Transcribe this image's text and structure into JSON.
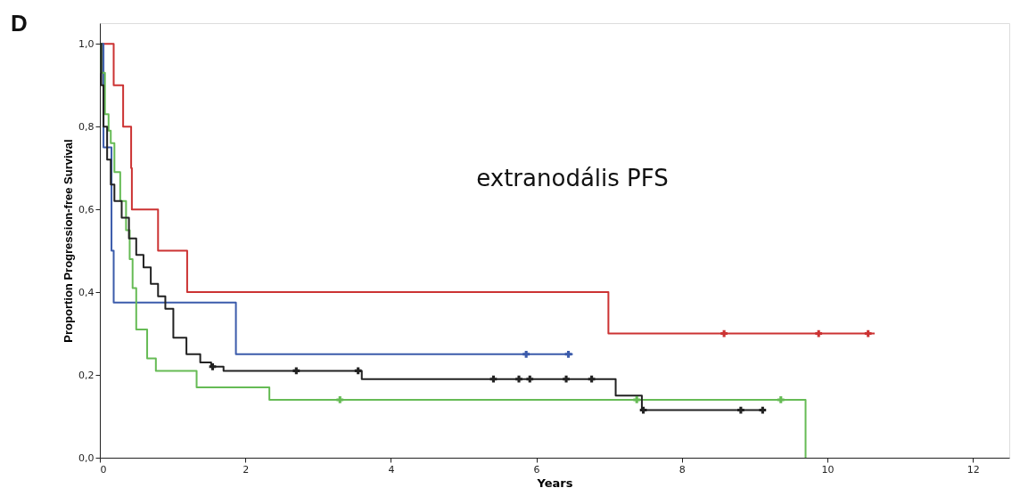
{
  "chart_data": {
    "type": "step",
    "xlabel": "Years",
    "ylabel": "Proportion Progression-free Survival",
    "xlim": [
      0,
      12.5
    ],
    "ylim": [
      0,
      1.05
    ],
    "xticks": [
      0,
      2,
      4,
      6,
      8,
      10,
      12
    ],
    "yticks": [
      {
        "value": 0,
        "label": "0,0"
      },
      {
        "value": 0.2,
        "label": "0,2"
      },
      {
        "value": 0.4,
        "label": "0,4"
      },
      {
        "value": 0.6,
        "label": "0,6"
      },
      {
        "value": 0.8,
        "label": "0,8"
      },
      {
        "value": 1.0,
        "label": "1,0"
      }
    ],
    "grid": false,
    "legend": false,
    "annotations": [
      "D",
      "extranodális PFS"
    ],
    "series": [
      {
        "color": "#cc3333",
        "x": [
          0,
          0.19,
          0.32,
          0.43,
          0.44,
          0.8,
          1.2,
          6.99,
          10.65
        ],
        "values": [
          1.0,
          0.9,
          0.8,
          0.7,
          0.6,
          0.5,
          0.4,
          0.3,
          0.3
        ]
      },
      {
        "color": "#3b5bab",
        "x": [
          0,
          0.05,
          0.16,
          0.19,
          1.87,
          6.5
        ],
        "values": [
          1.0,
          0.75,
          0.5,
          0.375,
          0.25,
          0.25
        ]
      },
      {
        "color": "#66bb55",
        "x": [
          0,
          0.02,
          0.07,
          0.12,
          0.15,
          0.2,
          0.28,
          0.36,
          0.41,
          0.45,
          0.5,
          0.65,
          0.77,
          1.33,
          2.33,
          9.7
        ],
        "values": [
          1.0,
          0.93,
          0.83,
          0.79,
          0.76,
          0.69,
          0.62,
          0.55,
          0.48,
          0.41,
          0.31,
          0.24,
          0.21,
          0.17,
          0.14,
          0.0
        ]
      },
      {
        "color": "#222222",
        "x": [
          0,
          0.02,
          0.05,
          0.1,
          0.15,
          0.2,
          0.3,
          0.4,
          0.5,
          0.6,
          0.7,
          0.8,
          0.9,
          1.01,
          1.19,
          1.38,
          1.53,
          1.7,
          3.6,
          7.09,
          7.45,
          9.15
        ],
        "values": [
          1.0,
          0.9,
          0.8,
          0.72,
          0.66,
          0.62,
          0.58,
          0.53,
          0.49,
          0.46,
          0.42,
          0.39,
          0.36,
          0.29,
          0.25,
          0.23,
          0.22,
          0.21,
          0.19,
          0.15,
          0.115,
          0.115
        ]
      },
      {
        "type": "scatter",
        "marker": "cross",
        "color": "#cc3333",
        "x": [
          8.58,
          9.88,
          10.56
        ],
        "values": [
          0.3,
          0.3,
          0.3
        ]
      },
      {
        "type": "scatter",
        "marker": "cross",
        "color": "#3b5bab",
        "x": [
          5.86,
          6.44
        ],
        "values": [
          0.25,
          0.25
        ]
      },
      {
        "type": "scatter",
        "marker": "cross",
        "color": "#66bb55",
        "x": [
          3.3,
          7.38,
          9.36
        ],
        "values": [
          0.14,
          0.14,
          0.14
        ]
      },
      {
        "type": "scatter",
        "marker": "cross",
        "color": "#222222",
        "x": [
          1.55,
          2.7,
          3.55,
          5.41,
          5.76,
          5.91,
          6.41,
          6.76,
          7.47,
          8.81,
          9.11
        ],
        "values": [
          0.22,
          0.21,
          0.21,
          0.19,
          0.19,
          0.19,
          0.19,
          0.19,
          0.115,
          0.115,
          0.115
        ]
      }
    ]
  }
}
